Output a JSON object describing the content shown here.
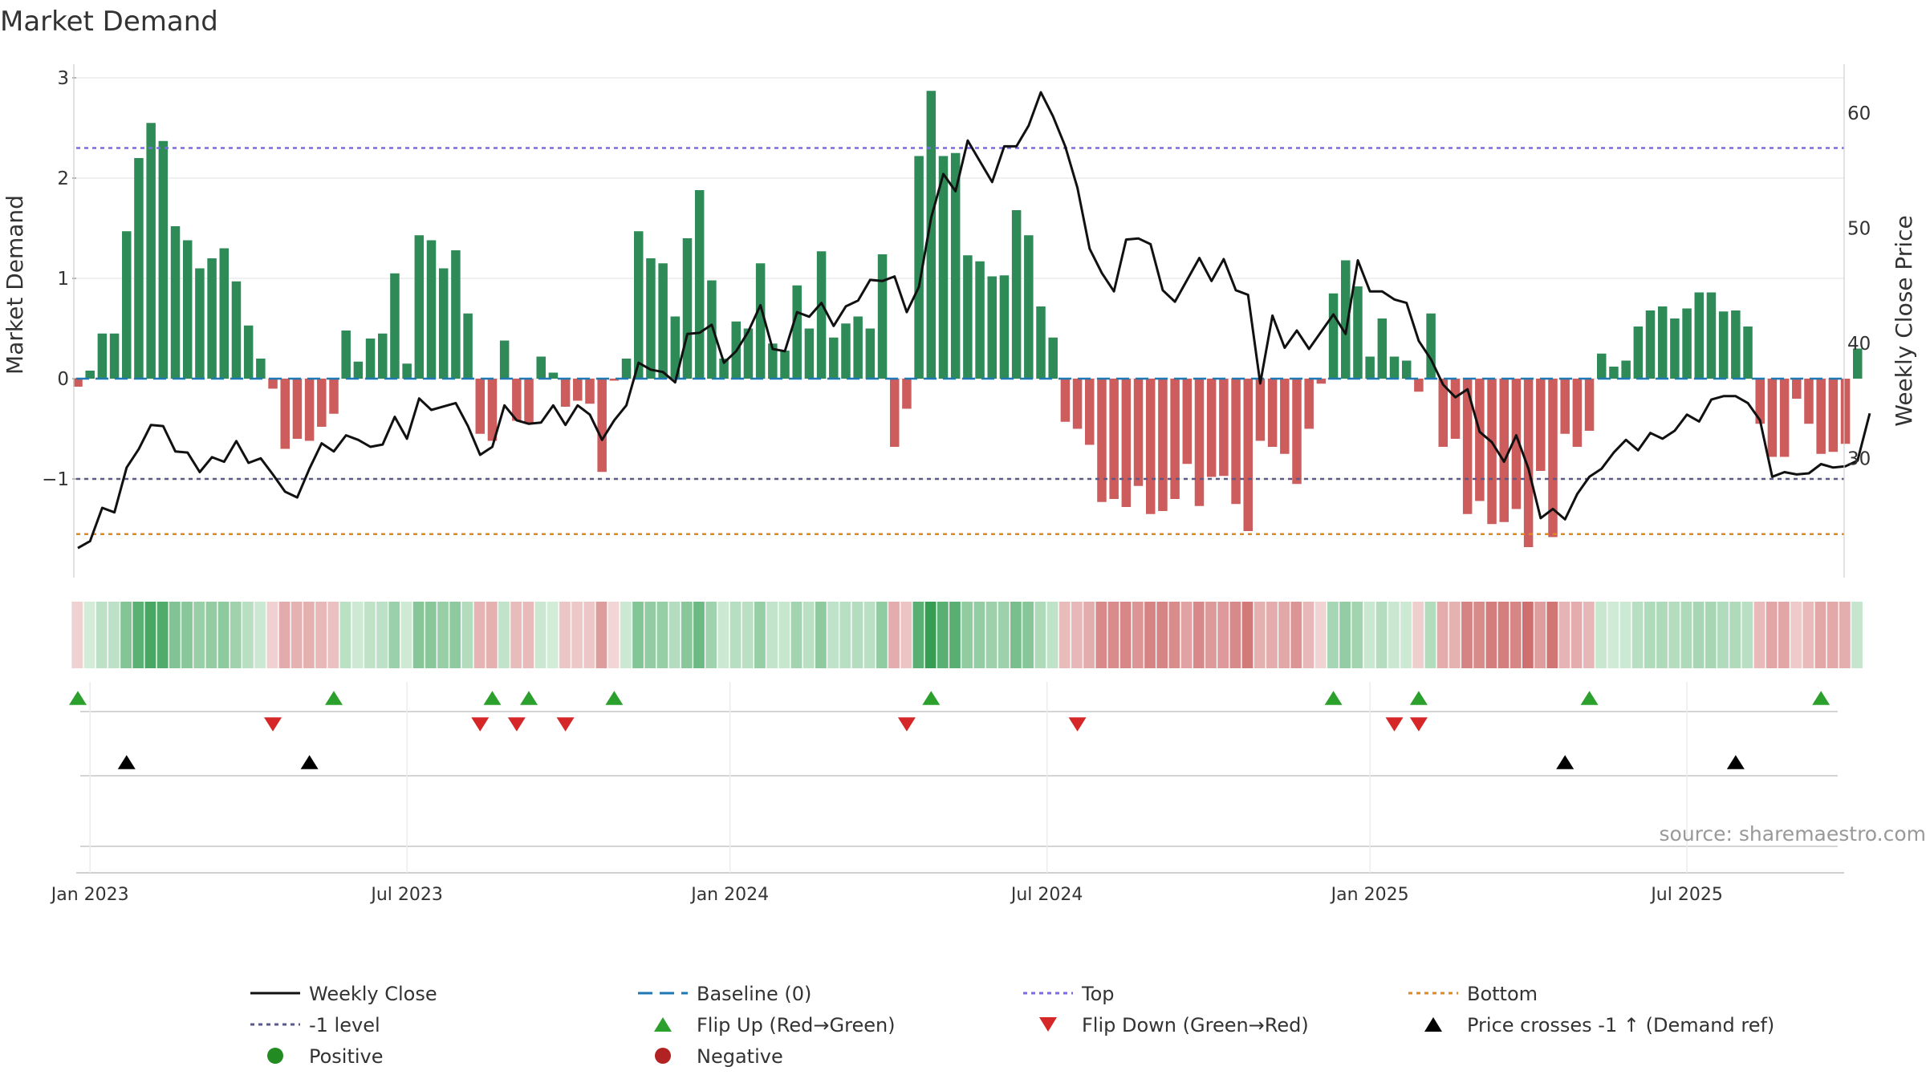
{
  "chart_data": {
    "type": "bar",
    "title": "Market Demand",
    "ylabel_left": "Market Demand",
    "ylabel_right": "Weekly Close Price",
    "ylim_left": [
      -1.95,
      3.1
    ],
    "yticks_left": [
      3,
      2,
      1,
      0,
      -1
    ],
    "ytick_labels_left": [
      "3",
      "2",
      "1",
      "0",
      "−1"
    ],
    "ylim_right": [
      20.5,
      64
    ],
    "yticks_right": [
      60,
      50,
      40,
      30
    ],
    "ytick_labels_right": [
      "60",
      "50",
      "40",
      "30"
    ],
    "top_level": 2.3,
    "minus_one_level": -1,
    "bottom_level": -1.55,
    "baseline": 0,
    "x_ticks": [
      {
        "label": "Jan 2023",
        "week": 1
      },
      {
        "label": "Jul 2023",
        "week": 27
      },
      {
        "label": "Jan 2024",
        "week": 53.5
      },
      {
        "label": "Jul 2024",
        "week": 79.5
      },
      {
        "label": "Jan 2025",
        "week": 106
      },
      {
        "label": "Jul 2025",
        "week": 132
      }
    ],
    "demand": [
      -0.08,
      0.08,
      0.45,
      0.45,
      1.47,
      2.2,
      2.55,
      2.37,
      1.52,
      1.38,
      1.1,
      1.2,
      1.3,
      0.97,
      0.53,
      0.2,
      -0.1,
      -0.7,
      -0.6,
      -0.62,
      -0.48,
      -0.35,
      0.48,
      0.17,
      0.4,
      0.45,
      1.05,
      0.15,
      1.43,
      1.38,
      1.1,
      1.28,
      0.65,
      -0.55,
      -0.62,
      0.38,
      -0.42,
      -0.45,
      0.22,
      0.06,
      -0.28,
      -0.22,
      -0.25,
      -0.93,
      -0.02,
      0.2,
      1.47,
      1.2,
      1.15,
      0.62,
      1.4,
      1.88,
      0.98,
      0.2,
      0.57,
      0.5,
      1.15,
      0.35,
      0.28,
      0.93,
      0.5,
      1.27,
      0.41,
      0.55,
      0.62,
      0.5,
      1.24,
      -0.68,
      -0.3,
      2.22,
      2.87,
      2.22,
      2.25,
      1.23,
      1.17,
      1.02,
      1.03,
      1.68,
      1.43,
      0.72,
      0.41,
      -0.43,
      -0.5,
      -0.66,
      -1.23,
      -1.2,
      -1.28,
      -1.07,
      -1.35,
      -1.32,
      -1.2,
      -0.85,
      -1.27,
      -0.98,
      -0.97,
      -1.25,
      -1.52,
      -0.62,
      -0.68,
      -0.75,
      -1.05,
      -0.5,
      -0.05,
      0.85,
      1.18,
      0.92,
      0.22,
      0.6,
      0.22,
      0.18,
      -0.13,
      0.65,
      -0.68,
      -0.6,
      -1.35,
      -1.22,
      -1.45,
      -1.43,
      -1.3,
      -1.68,
      -0.92,
      -1.58,
      -0.55,
      -0.68,
      -0.52,
      0.25,
      0.12,
      0.18,
      0.52,
      0.68,
      0.72,
      0.6,
      0.7,
      0.86,
      0.86,
      0.67,
      0.68,
      0.52,
      -0.45,
      -0.78,
      -0.78,
      -0.2,
      -0.45,
      -0.75,
      -0.73,
      -0.65,
      0.3
    ],
    "weekly_close": [
      22.2,
      22.8,
      25.7,
      25.3,
      29.2,
      30.8,
      32.9,
      32.8,
      30.6,
      30.5,
      28.8,
      30.1,
      29.7,
      31.5,
      29.6,
      30.0,
      28.6,
      27.1,
      26.6,
      29.1,
      31.3,
      30.6,
      32.0,
      31.6,
      31.0,
      31.2,
      33.6,
      31.7,
      35.2,
      34.2,
      34.5,
      34.8,
      32.8,
      30.3,
      31.0,
      34.6,
      33.3,
      33.0,
      33.1,
      34.6,
      32.9,
      34.6,
      33.8,
      31.6,
      33.3,
      34.6,
      38.3,
      37.7,
      37.5,
      36.6,
      40.8,
      40.9,
      41.6,
      38.3,
      39.3,
      41.0,
      43.3,
      39.5,
      39.3,
      42.7,
      42.3,
      43.5,
      41.5,
      43.2,
      43.7,
      45.5,
      45.4,
      45.8,
      42.7,
      44.9,
      50.9,
      54.7,
      53.2,
      57.6,
      55.8,
      54.0,
      57.1,
      57.1,
      58.9,
      61.8,
      59.7,
      57.1,
      53.5,
      48.2,
      46.1,
      44.5,
      49.0,
      49.1,
      48.6,
      44.6,
      43.6,
      45.5,
      47.4,
      45.4,
      47.3,
      44.6,
      44.2,
      36.5,
      42.4,
      39.6,
      41.1,
      39.5,
      41.0,
      42.5,
      40.8,
      47.2,
      44.5,
      44.5,
      43.8,
      43.5,
      40.2,
      38.6,
      36.4,
      35.3,
      36.0,
      32.3,
      31.4,
      29.7,
      32.0,
      29.1,
      24.8,
      25.6,
      24.7,
      26.9,
      28.4,
      29.1,
      30.5,
      31.6,
      30.7,
      32.2,
      31.7,
      32.4,
      33.8,
      33.2,
      35.1,
      35.4,
      35.4,
      34.8,
      33.3,
      28.4,
      28.8,
      28.6,
      28.7,
      29.5,
      29.2,
      29.3,
      29.8,
      33.9
    ],
    "markers": {
      "flip_up_weeks": [
        0,
        21,
        34,
        37,
        44,
        70,
        103,
        110,
        124,
        143
      ],
      "flip_down_weeks": [
        16,
        33,
        36,
        40,
        68,
        82,
        108,
        110
      ],
      "price_cross_weeks": [
        4,
        19,
        122,
        136
      ]
    },
    "legend_placement": "bottom"
  },
  "colors": {
    "positive_bar": "#2e8b57",
    "negative_bar": "#cd5c5c",
    "price_line": "#111111",
    "baseline": "#1f77b4",
    "top_line": "#7b68ee",
    "minus_one_line": "#5a5a8a",
    "bottom_line": "#e08a1e",
    "flip_up": "#2ca02c",
    "flip_down": "#d62728",
    "price_cross": "#000000",
    "positive_dot": "#228b22",
    "negative_dot": "#b22222"
  },
  "legend": [
    {
      "label": "Weekly Close",
      "key": "close"
    },
    {
      "label": "Baseline (0)",
      "key": "baseline"
    },
    {
      "label": "Top",
      "key": "top"
    },
    {
      "label": "Bottom",
      "key": "bottom"
    },
    {
      "label": "-1 level",
      "key": "minus_one"
    },
    {
      "label": "Flip Up (Red→Green)",
      "key": "flip_up"
    },
    {
      "label": "Flip Down (Green→Red)",
      "key": "flip_down"
    },
    {
      "label": "Price crosses -1 ↑ (Demand ref)",
      "key": "price_cross"
    },
    {
      "label": "Positive",
      "key": "positive"
    },
    {
      "label": "Negative",
      "key": "negative"
    }
  ],
  "source": "source: sharemaestro.com"
}
